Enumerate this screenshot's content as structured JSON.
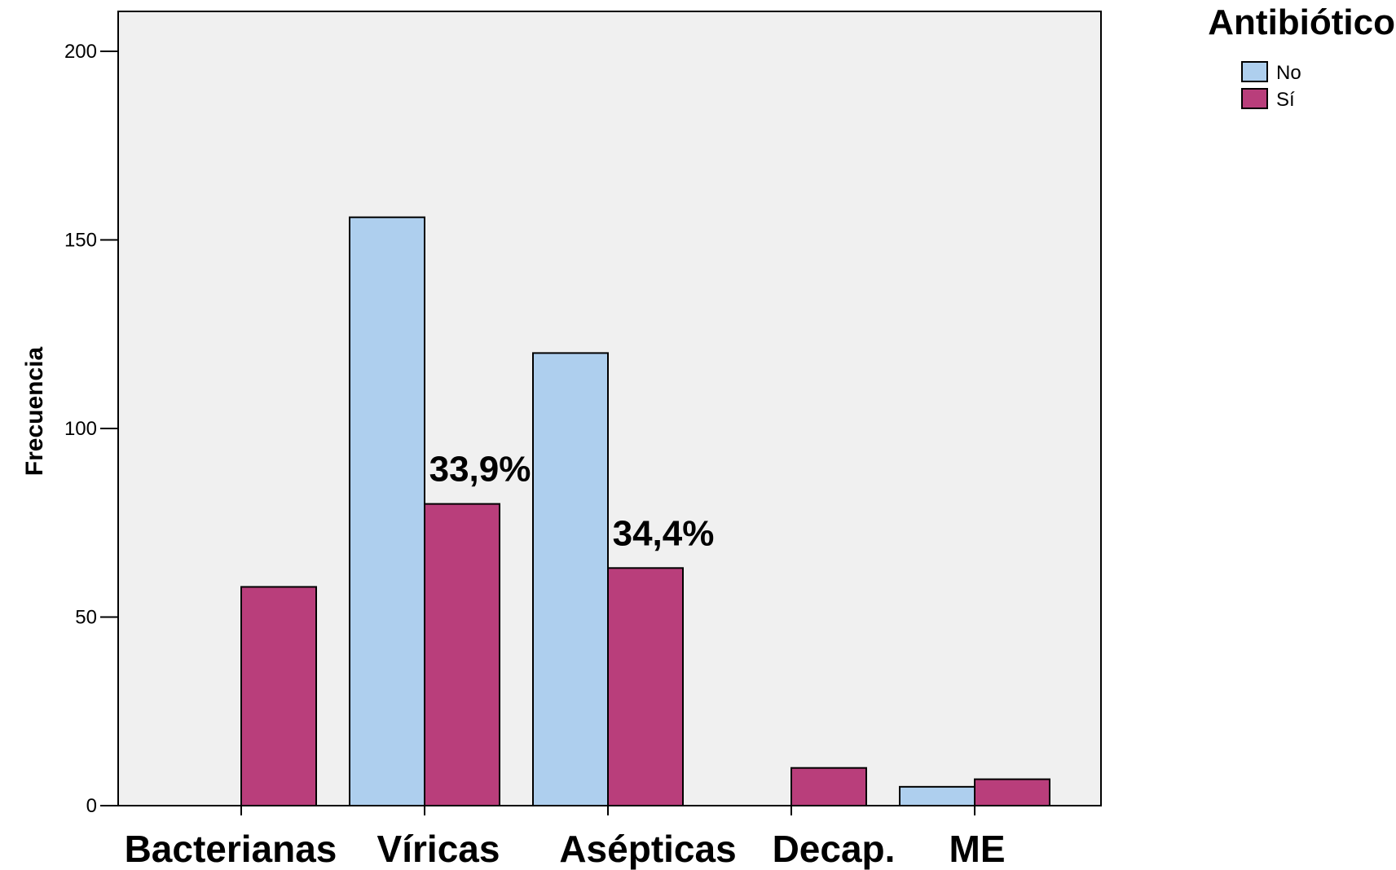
{
  "chart_data": {
    "type": "bar",
    "categories": [
      "Bacterianas",
      "Víricas",
      "Asépticas",
      "Decap.",
      "ME"
    ],
    "series": [
      {
        "name": "No",
        "values": [
          0,
          156,
          120,
          0,
          5
        ],
        "color": "#aecfee"
      },
      {
        "name": "Sí",
        "values": [
          58,
          80,
          63,
          10,
          7
        ],
        "color": "#b93e7b"
      }
    ],
    "ylabel": "Frecuencia",
    "xlabel": "",
    "ylim": [
      0,
      210
    ],
    "yticks": [
      0,
      50,
      100,
      150,
      200
    ],
    "plot_background": "#f0f0f0",
    "grid": false,
    "legend": {
      "title": "Antibiótico",
      "placement": "top-right, outside plot"
    },
    "annotations": [
      {
        "text": "33,9%",
        "category": "Víricas",
        "series": "Sí"
      },
      {
        "text": "34,4%",
        "category": "Asépticas",
        "series": "Sí"
      }
    ]
  }
}
